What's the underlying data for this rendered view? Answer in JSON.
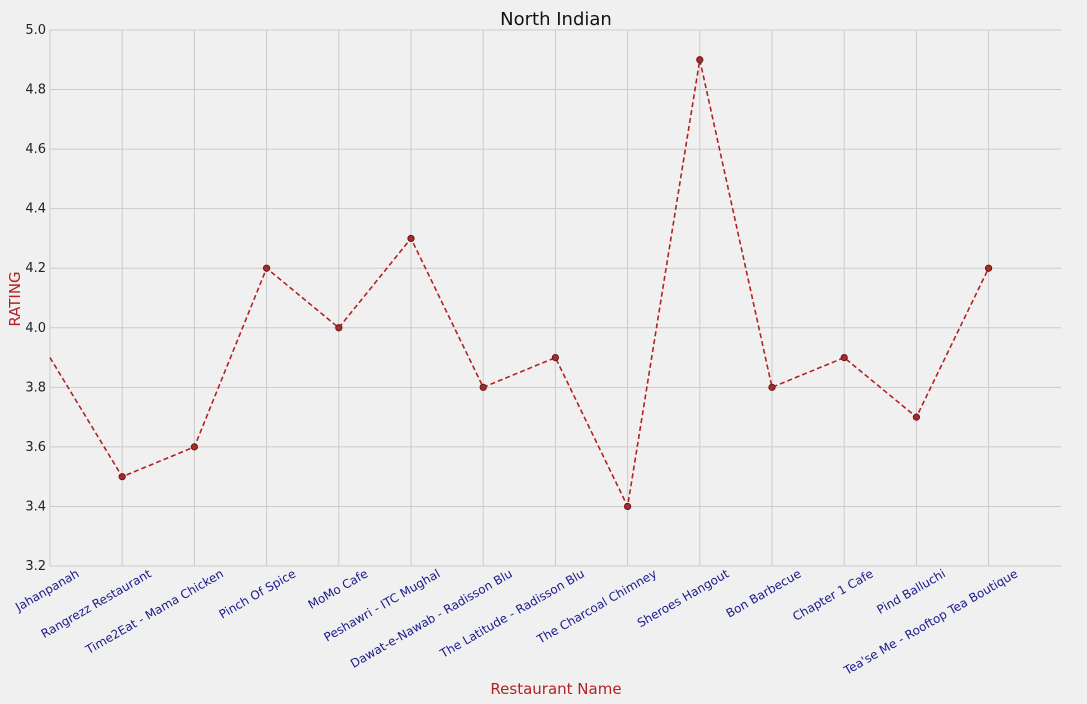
{
  "chart_data": {
    "type": "line",
    "title": "North Indian",
    "xlabel": "Restaurant Name",
    "ylabel": "RATING",
    "categories": [
      "Jahanpanah",
      "Rangrezz Restaurant",
      "Time2Eat - Mama Chicken",
      "Pinch Of Spice",
      "MoMo Cafe",
      "Peshawri - ITC Mughal",
      "Dawat-e-Nawab - Radisson Blu",
      "The Latitude - Radisson Blu",
      "The Charcoal Chimney",
      "Sheroes Hangout",
      "Bon Barbecue",
      "Chapter 1 Cafe",
      "Pind Balluchi",
      "Tea'se Me - Rooftop Tea Boutique"
    ],
    "values": [
      3.9,
      3.5,
      3.6,
      4.2,
      4.0,
      4.3,
      3.8,
      3.9,
      3.4,
      4.9,
      3.8,
      3.9,
      3.7,
      4.2
    ],
    "ylim": [
      3.2,
      5.0
    ],
    "yticks": [
      "3.2",
      "3.4",
      "3.6",
      "3.8",
      "4.0",
      "4.2",
      "4.4",
      "4.6",
      "4.8",
      "5.0"
    ],
    "grid": true,
    "line_style": "dashed",
    "line_color": "#b22222",
    "marker_color": "#a52a2a",
    "background_color": "#f0f0f0",
    "grid_color": "#cbcbcb",
    "xtick_color": "#1a1a8c",
    "label_color": "#b22222"
  }
}
